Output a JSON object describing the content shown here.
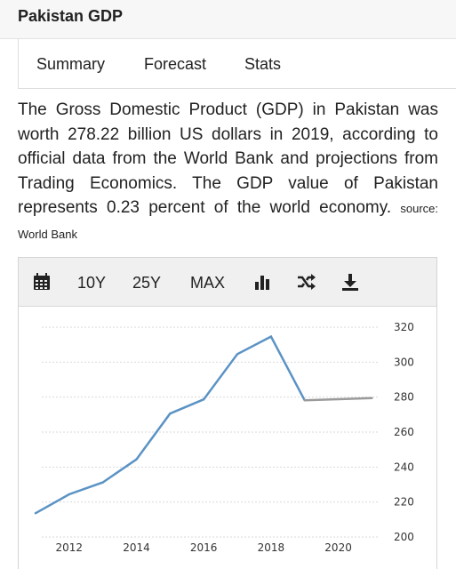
{
  "page": {
    "title": "Pakistan GDP"
  },
  "tabs": [
    {
      "label": "Summary"
    },
    {
      "label": "Forecast"
    },
    {
      "label": "Stats"
    }
  ],
  "description": {
    "text": "The Gross Domestic Product (GDP) in Pakistan was worth 278.22 billion US dollars in 2019, according to official data from the World Bank and projections from Trading Economics. The GDP value of Pakistan represents 0.23 percent of the world economy.",
    "source": "source: World Bank"
  },
  "toolbar": {
    "calendar_icon": "calendar-icon",
    "range_10y": "10Y",
    "range_25y": "25Y",
    "range_max": "MAX",
    "bar_icon": "bar-chart-icon",
    "shuffle_icon": "shuffle-icon",
    "download_icon": "download-icon"
  },
  "colors": {
    "history_line": "#5b93c4",
    "forecast_line": "#9a9a9a",
    "grid": "#d9d9d9"
  },
  "chart_data": {
    "type": "line",
    "title": "",
    "xlabel": "",
    "ylabel": "",
    "xlim": [
      2010.5,
      2021.2
    ],
    "ylim": [
      200,
      320
    ],
    "x_ticks": [
      2012,
      2014,
      2016,
      2018,
      2020
    ],
    "y_ticks": [
      200,
      220,
      240,
      260,
      280,
      300,
      320
    ],
    "grid": "horizontal-dotted",
    "y_axis_side": "right",
    "series": [
      {
        "style": "history",
        "x": [
          2011,
          2012,
          2013,
          2014,
          2015,
          2016,
          2017,
          2018,
          2019
        ],
        "values": [
          213.6,
          224.4,
          231.2,
          244.4,
          270.6,
          278.7,
          304.6,
          314.6,
          278.22
        ]
      },
      {
        "style": "forecast",
        "x": [
          2019,
          2020,
          2021
        ],
        "values": [
          278.22,
          278.8,
          279.4
        ]
      }
    ]
  }
}
